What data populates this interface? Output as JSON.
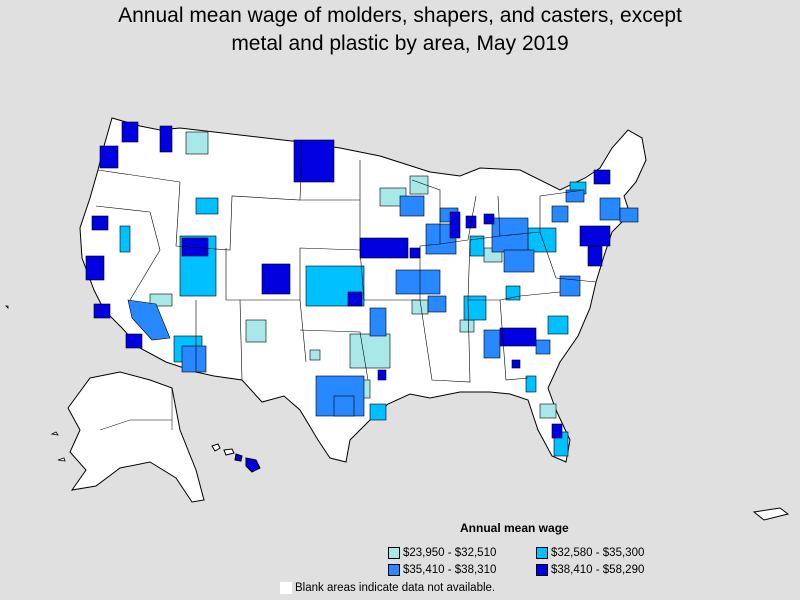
{
  "title_line1": "Annual mean wage of molders, shapers, and casters, except",
  "title_line2": "metal and plastic by area, May 2019",
  "legend": {
    "title": "Annual mean wage",
    "items": [
      {
        "label": "$23,950 - $32,510",
        "color": "#a8e8e8"
      },
      {
        "label": "$32,580 - $35,300",
        "color": "#00c0ff"
      },
      {
        "label": "$35,410 - $38,310",
        "color": "#2888ff"
      },
      {
        "label": "$38,410 - $58,290",
        "color": "#0000e0"
      }
    ]
  },
  "note": "Blank areas indicate data not available.",
  "colors": {
    "background": "#e0e0e0",
    "land": "#ffffff",
    "outline": "#000000"
  }
}
